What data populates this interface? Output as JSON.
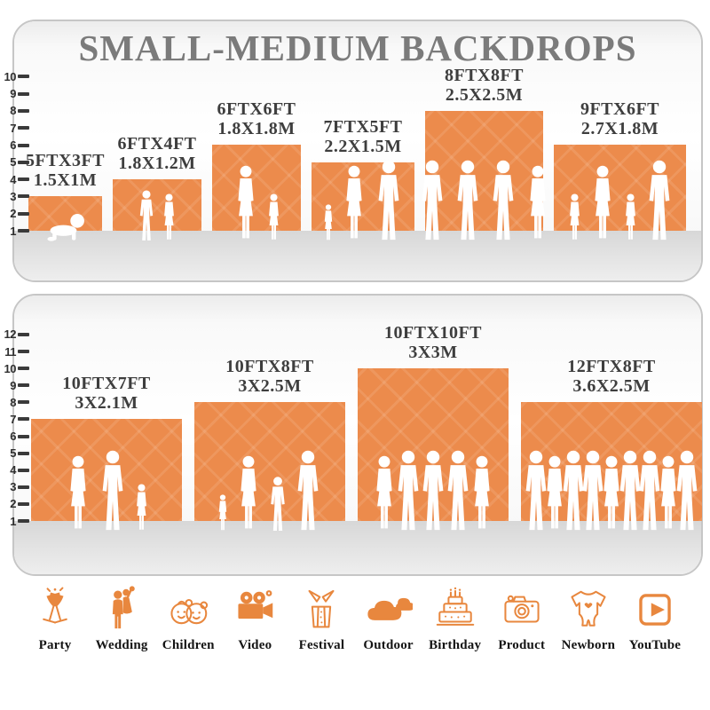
{
  "title": "SMALL-MEDIUM BACKDROPS",
  "accent_color": "#EC8B4C",
  "chart_data": {
    "type": "bar",
    "title": "SMALL-MEDIUM BACKDROPS",
    "legend_position": "none",
    "grid": "ruler-ticks-left",
    "panels": [
      {
        "ruler_min": 1,
        "ruler_max": 10,
        "ruler_ticks": [
          10,
          9,
          8,
          7,
          6,
          5,
          4,
          3,
          2,
          1
        ],
        "bars": [
          {
            "label_ft": "5FTX3FT",
            "label_m": "1.5X1M",
            "width_ft": 5,
            "height_ft": 3,
            "figures": [
              "baby-crawl"
            ]
          },
          {
            "label_ft": "6FTX4FT",
            "label_m": "1.8X1.2M",
            "width_ft": 6,
            "height_ft": 4,
            "figures": [
              "boy",
              "girl"
            ]
          },
          {
            "label_ft": "6FTX6FT",
            "label_m": "1.8X1.8M",
            "width_ft": 6,
            "height_ft": 6,
            "figures": [
              "woman",
              "girl"
            ]
          },
          {
            "label_ft": "7FTX5FT",
            "label_m": "2.2X1.5M",
            "width_ft": 7,
            "height_ft": 5,
            "figures": [
              "toddler",
              "woman",
              "man"
            ]
          },
          {
            "label_ft": "8FTX8FT",
            "label_m": "2.5X2.5M",
            "width_ft": 8,
            "height_ft": 8,
            "figures": [
              "man",
              "man",
              "man",
              "woman"
            ]
          },
          {
            "label_ft": "9FTX6FT",
            "label_m": "2.7X1.8M",
            "width_ft": 9,
            "height_ft": 6,
            "figures": [
              "girl",
              "woman",
              "girl",
              "man"
            ]
          }
        ]
      },
      {
        "ruler_min": 1,
        "ruler_max": 12,
        "ruler_ticks": [
          12,
          11,
          10,
          9,
          8,
          7,
          6,
          5,
          4,
          3,
          2,
          1
        ],
        "bars": [
          {
            "label_ft": "10FTX7FT",
            "label_m": "3X2.1M",
            "width_ft": 10,
            "height_ft": 7,
            "figures": [
              "woman",
              "man",
              "girl"
            ]
          },
          {
            "label_ft": "10FTX8FT",
            "label_m": "3X2.5M",
            "width_ft": 10,
            "height_ft": 8,
            "figures": [
              "toddler",
              "woman",
              "child",
              "man"
            ]
          },
          {
            "label_ft": "10FTX10FT",
            "label_m": "3X3M",
            "width_ft": 10,
            "height_ft": 10,
            "figures": [
              "woman",
              "man",
              "man",
              "man",
              "woman"
            ]
          },
          {
            "label_ft": "12FTX8FT",
            "label_m": "3.6X2.5M",
            "width_ft": 12,
            "height_ft": 8,
            "figures": [
              "man",
              "woman",
              "man",
              "man",
              "woman",
              "man",
              "man",
              "woman",
              "man"
            ]
          }
        ]
      }
    ]
  },
  "categories": [
    {
      "label": "Party",
      "icon": "party-icon"
    },
    {
      "label": "Wedding",
      "icon": "wedding-icon"
    },
    {
      "label": "Children",
      "icon": "children-icon"
    },
    {
      "label": "Video",
      "icon": "video-icon"
    },
    {
      "label": "Festival",
      "icon": "festival-icon"
    },
    {
      "label": "Outdoor",
      "icon": "outdoor-icon"
    },
    {
      "label": "Birthday",
      "icon": "birthday-icon"
    },
    {
      "label": "Product",
      "icon": "product-icon"
    },
    {
      "label": "Newborn",
      "icon": "newborn-icon"
    },
    {
      "label": "YouTube",
      "icon": "youtube-icon"
    }
  ]
}
